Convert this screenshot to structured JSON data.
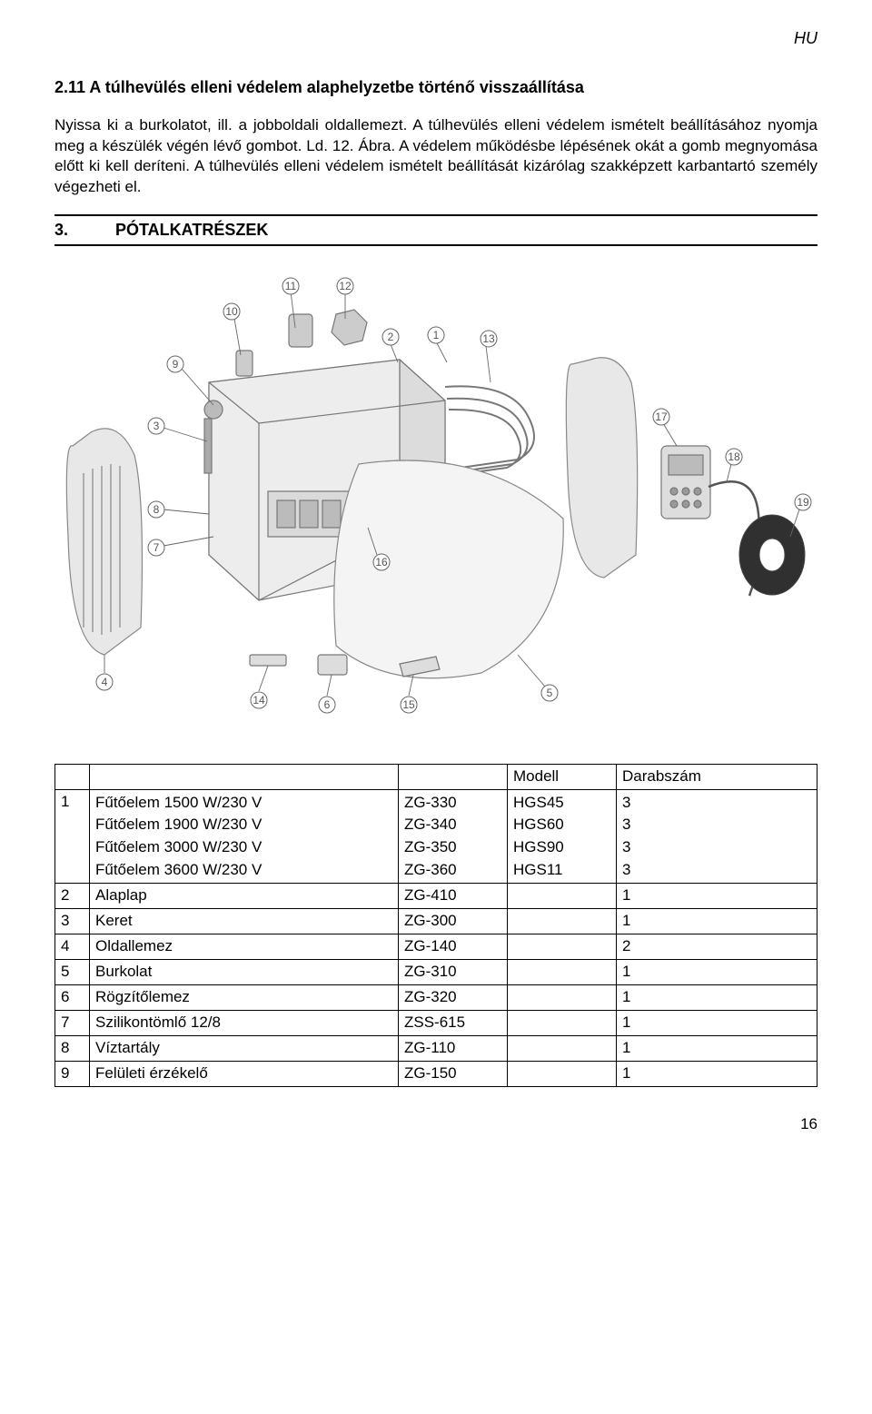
{
  "header": {
    "lang": "HU"
  },
  "section": {
    "number_title": "2.11  A túlhevülés elleni védelem alaphelyzetbe történő visszaállítása",
    "para1": "Nyissa ki a burkolatot, ill. a jobboldali oldallemezt. A túlhevülés elleni védelem ismételt beállításához nyomja meg a készülék végén lévő gombot. Ld. 12. Ábra. A védelem működésbe lépésének okát a gomb megnyomása előtt ki kell deríteni. A túlhevülés elleni védelem ismételt beállítását kizárólag szakképzett karbantartó személy végezheti el."
  },
  "chapter": {
    "number": "3.",
    "title": "PÓTALKATRÉSZEK"
  },
  "diagram": {
    "callouts": [
      "1",
      "2",
      "3",
      "4",
      "5",
      "6",
      "7",
      "8",
      "9",
      "10",
      "11",
      "12",
      "13",
      "14",
      "15",
      "16",
      "17",
      "18",
      "19"
    ]
  },
  "parts_table": {
    "headers": {
      "model": "Modell",
      "qty": "Darabszám"
    },
    "row1": {
      "idx": "1",
      "names": "Fűtőelem 1500 W/230 V\nFűtőelem 1900 W/230 V\nFűtőelem 3000 W/230 V\nFűtőelem 3600 W/230 V",
      "codes": "ZG-330\nZG-340\nZG-350\nZG-360",
      "models": "HGS45\nHGS60\nHGS90\nHGS11",
      "qtys": "3\n3\n3\n3"
    },
    "rows_simple": [
      {
        "idx": "2",
        "name": "Alaplap",
        "code": "ZG-410",
        "model": "",
        "qty": "1"
      },
      {
        "idx": "3",
        "name": "Keret",
        "code": "ZG-300",
        "model": "",
        "qty": "1"
      },
      {
        "idx": "4",
        "name": "Oldallemez",
        "code": "ZG-140",
        "model": "",
        "qty": "2"
      },
      {
        "idx": "5",
        "name": "Burkolat",
        "code": "ZG-310",
        "model": "",
        "qty": "1"
      },
      {
        "idx": "6",
        "name": "Rögzítőlemez",
        "code": "ZG-320",
        "model": "",
        "qty": "1"
      },
      {
        "idx": "7",
        "name": "Szilikontömlő 12/8",
        "code": "ZSS-615",
        "model": "",
        "qty": "1"
      },
      {
        "idx": "8",
        "name": "Víztartály",
        "code": "ZG-110",
        "model": "",
        "qty": "1"
      },
      {
        "idx": "9",
        "name": "Felületi érzékelő",
        "code": "ZG-150",
        "model": "",
        "qty": "1"
      }
    ]
  },
  "page": {
    "number": "16"
  },
  "colors": {
    "page_bg": "#ffffff",
    "text": "#000000",
    "diagram_stroke": "#888888",
    "diagram_fill": "#e8e8e8",
    "diagram_dark": "#666666"
  }
}
